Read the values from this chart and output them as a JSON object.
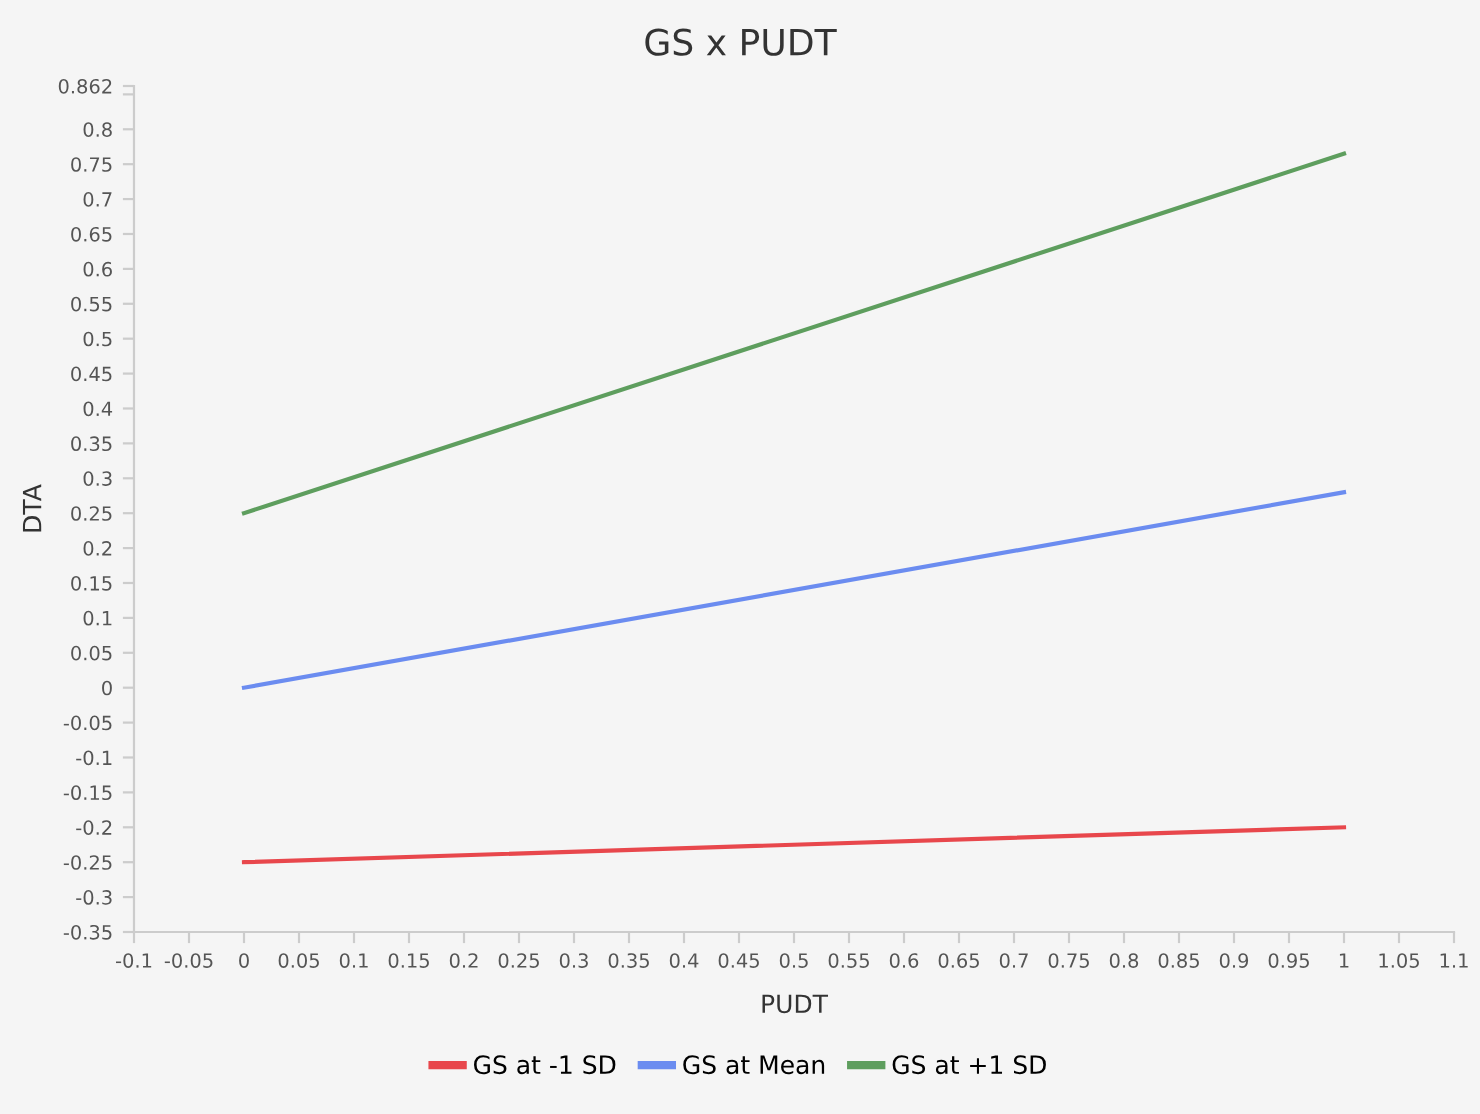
{
  "chart_data": {
    "type": "line",
    "title": "GS x PUDT",
    "xlabel": "PUDT",
    "ylabel": "DTA",
    "xlim": [
      -0.1,
      1.1
    ],
    "ylim": [
      -0.35,
      0.862
    ],
    "xticks": [
      -0.1,
      -0.05,
      0,
      0.05,
      0.1,
      0.15,
      0.2,
      0.25,
      0.3,
      0.35,
      0.4,
      0.45,
      0.5,
      0.55,
      0.6,
      0.65,
      0.7,
      0.75,
      0.8,
      0.85,
      0.9,
      0.95,
      1,
      1.05,
      1.1
    ],
    "yticks": [
      -0.35,
      -0.3,
      -0.25,
      -0.2,
      -0.15,
      -0.1,
      -0.05,
      0,
      0.05,
      0.1,
      0.15,
      0.2,
      0.25,
      0.3,
      0.35,
      0.4,
      0.45,
      0.5,
      0.55,
      0.6,
      0.65,
      0.7,
      0.75,
      0.8,
      {
        "value": 0.85,
        "label": null
      },
      0.862
    ],
    "x": [
      0,
      1
    ],
    "grid": false,
    "legend": "bottom",
    "marker": "none",
    "line_style": "solid",
    "series": [
      {
        "name": "GS at -1 SD",
        "color": "#e8474c",
        "values": [
          -0.25,
          -0.2
        ]
      },
      {
        "name": "GS at Mean",
        "color": "#6b8cf0",
        "values": [
          0,
          0.28
        ]
      },
      {
        "name": "GS at +1 SD",
        "color": "#5e9e5e",
        "values": [
          0.25,
          0.765
        ]
      }
    ]
  }
}
